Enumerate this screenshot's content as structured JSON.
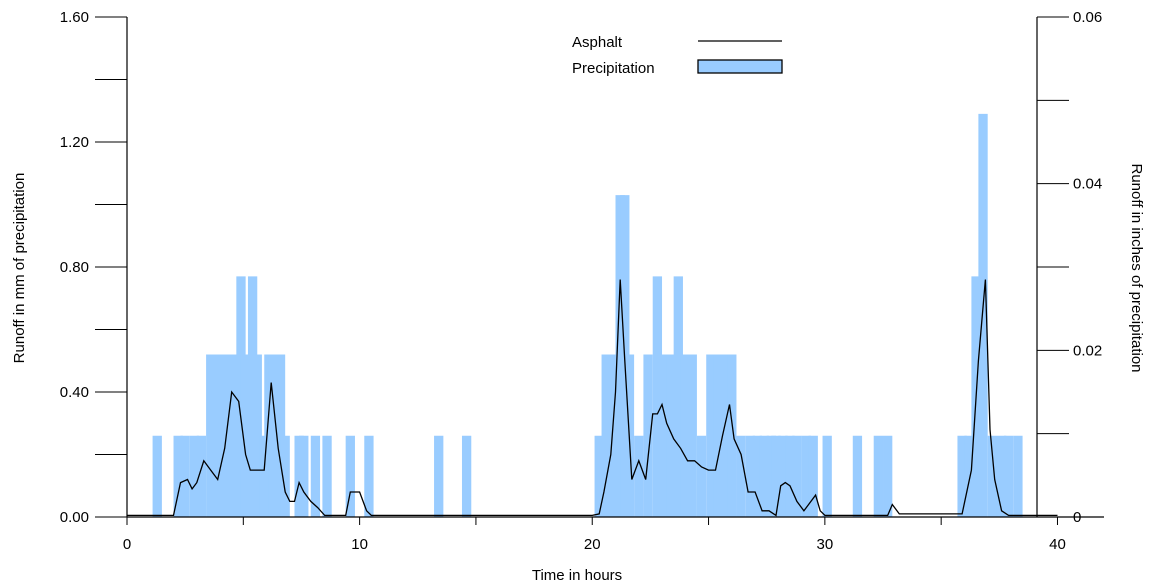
{
  "chart_data": {
    "type": "bar+line",
    "xlabel": "Time in hours",
    "ylabel_left": "Runoff in mm of precipitation",
    "ylabel_right": "Runoff in inches of precipitation",
    "xlim": [
      0,
      42
    ],
    "ylim_left": [
      0,
      1.6
    ],
    "ylim_right": [
      0,
      0.06
    ],
    "x_ticks": [
      0,
      10,
      20,
      30,
      40
    ],
    "x_tick_labels": [
      "0",
      "10",
      "20",
      "30",
      "40"
    ],
    "y_left_ticks": [
      0,
      0.4,
      0.8,
      1.2,
      1.6
    ],
    "y_left_tick_labels": [
      "0.00",
      "0.40",
      "0.80",
      "1.20",
      "1.60"
    ],
    "y_right_ticks": [
      0,
      0.02,
      0.04,
      0.06
    ],
    "y_right_tick_labels": [
      "0",
      "0.02",
      "0.04",
      "0.06"
    ],
    "legend": {
      "position": "top-center",
      "entries": [
        {
          "label": "Asphalt",
          "kind": "line",
          "color": "#000000"
        },
        {
          "label": "Precipitation",
          "kind": "bar",
          "color": "#99ccff"
        }
      ]
    },
    "bar_color": "#99ccff",
    "line_color": "#000000",
    "precipitation": {
      "name": "Precipitation",
      "bar_width_hours": 0.4,
      "x": [
        1.3,
        2.2,
        2.5,
        2.9,
        3.2,
        3.6,
        3.8,
        4.1,
        4.3,
        4.6,
        4.9,
        5.1,
        5.4,
        5.6,
        5.9,
        6.1,
        6.3,
        6.6,
        6.8,
        7.4,
        7.6,
        8.1,
        8.6,
        9.6,
        10.4,
        13.4,
        14.6,
        20.3,
        20.6,
        20.9,
        21.2,
        21.4,
        21.6,
        22.0,
        22.4,
        22.8,
        23.1,
        23.4,
        23.7,
        24.0,
        24.3,
        24.7,
        25.1,
        25.4,
        25.7,
        26.0,
        26.4,
        26.8,
        27.1,
        27.4,
        27.7,
        27.9,
        28.2,
        28.5,
        28.8,
        29.2,
        29.5,
        30.1,
        31.4,
        32.3,
        32.7,
        35.9,
        36.2,
        36.5,
        36.8,
        37.2,
        37.6,
        37.9,
        38.3
      ],
      "values": [
        0.26,
        0.26,
        0.26,
        0.26,
        0.26,
        0.52,
        0.52,
        0.52,
        0.52,
        0.52,
        0.77,
        0.52,
        0.77,
        0.52,
        0.26,
        0.52,
        0.52,
        0.52,
        0.26,
        0.26,
        0.26,
        0.26,
        0.26,
        0.26,
        0.26,
        0.26,
        0.26,
        0.26,
        0.52,
        0.52,
        1.03,
        1.03,
        0.52,
        0.26,
        0.52,
        0.77,
        0.52,
        0.52,
        0.77,
        0.52,
        0.52,
        0.26,
        0.52,
        0.52,
        0.52,
        0.52,
        0.26,
        0.26,
        0.26,
        0.26,
        0.26,
        0.26,
        0.26,
        0.26,
        0.26,
        0.26,
        0.26,
        0.26,
        0.26,
        0.26,
        0.26,
        0.26,
        0.26,
        0.77,
        1.29,
        0.26,
        0.26,
        0.26,
        0.26
      ]
    },
    "asphalt": {
      "name": "Asphalt",
      "x": [
        0,
        2.0,
        2.3,
        2.6,
        2.8,
        3.0,
        3.3,
        3.6,
        3.9,
        4.2,
        4.5,
        4.8,
        5.1,
        5.3,
        5.6,
        5.9,
        6.2,
        6.5,
        6.8,
        7.0,
        7.2,
        7.4,
        7.6,
        7.9,
        8.2,
        8.5,
        8.8,
        9.1,
        9.4,
        9.6,
        9.7,
        10.0,
        10.3,
        10.5,
        20.0,
        20.3,
        20.5,
        20.8,
        21.0,
        21.2,
        21.4,
        21.7,
        22.0,
        22.3,
        22.6,
        22.8,
        23.0,
        23.2,
        23.5,
        23.8,
        24.1,
        24.4,
        24.7,
        25.0,
        25.3,
        25.6,
        25.9,
        26.1,
        26.4,
        26.7,
        27.0,
        27.3,
        27.6,
        27.9,
        28.1,
        28.3,
        28.5,
        28.8,
        29.1,
        29.3,
        29.6,
        29.8,
        30.0,
        32.7,
        32.9,
        33.2,
        35.9,
        36.3,
        36.6,
        36.9,
        37.1,
        37.3,
        37.6,
        37.9,
        38.2,
        38.5,
        40.0
      ],
      "values": [
        0.005,
        0.005,
        0.11,
        0.12,
        0.09,
        0.11,
        0.18,
        0.15,
        0.12,
        0.22,
        0.4,
        0.37,
        0.2,
        0.15,
        0.15,
        0.15,
        0.43,
        0.22,
        0.08,
        0.05,
        0.05,
        0.11,
        0.08,
        0.05,
        0.03,
        0.005,
        0.005,
        0.005,
        0.005,
        0.08,
        0.08,
        0.08,
        0.02,
        0.005,
        0.005,
        0.01,
        0.08,
        0.2,
        0.4,
        0.76,
        0.5,
        0.12,
        0.18,
        0.12,
        0.33,
        0.33,
        0.36,
        0.3,
        0.25,
        0.22,
        0.18,
        0.18,
        0.16,
        0.15,
        0.15,
        0.26,
        0.36,
        0.25,
        0.2,
        0.08,
        0.08,
        0.02,
        0.02,
        0.005,
        0.1,
        0.11,
        0.1,
        0.05,
        0.02,
        0.04,
        0.07,
        0.02,
        0.005,
        0.005,
        0.04,
        0.01,
        0.01,
        0.15,
        0.5,
        0.76,
        0.28,
        0.12,
        0.02,
        0.005,
        0.005,
        0.005,
        0.005
      ]
    }
  }
}
